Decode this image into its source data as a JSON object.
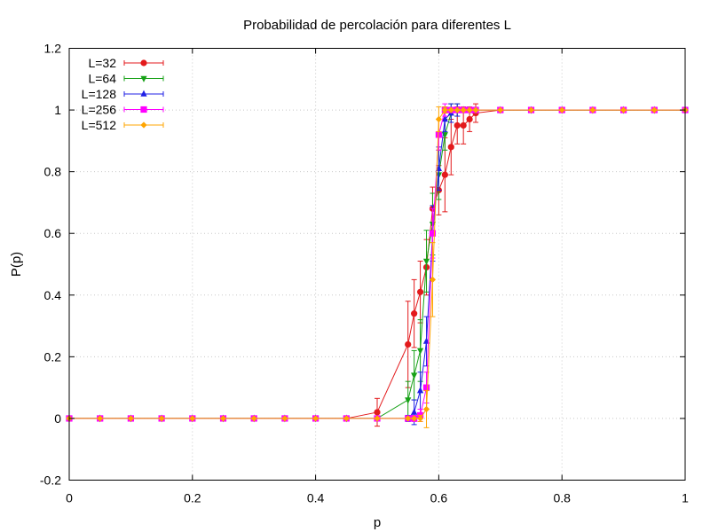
{
  "chart_data": {
    "type": "line",
    "title": "Probabilidad de percolación para diferentes L",
    "xlabel": "p",
    "ylabel": "P(p)",
    "xlim": [
      0,
      1
    ],
    "ylim": [
      -0.2,
      1.2
    ],
    "x_ticks": [
      "0",
      "0.2",
      "0.4",
      "0.6",
      "0.8",
      "1"
    ],
    "y_ticks": [
      "-0.2",
      "0",
      "0.2",
      "0.4",
      "0.6",
      "0.8",
      "1",
      "1.2"
    ],
    "grid": true,
    "legend_position": "top-left",
    "error_bars": true,
    "series": [
      {
        "name": "L=32",
        "color": "#e31a1c",
        "marker": "circle",
        "points": [
          [
            0,
            0,
            0
          ],
          [
            0.05,
            0,
            0
          ],
          [
            0.1,
            0,
            0
          ],
          [
            0.15,
            0,
            0
          ],
          [
            0.2,
            0,
            0
          ],
          [
            0.25,
            0,
            0
          ],
          [
            0.3,
            0,
            0
          ],
          [
            0.35,
            0,
            0
          ],
          [
            0.4,
            0,
            0
          ],
          [
            0.45,
            0,
            0
          ],
          [
            0.5,
            0.02,
            0.045
          ],
          [
            0.55,
            0.24,
            0.14
          ],
          [
            0.56,
            0.34,
            0.11
          ],
          [
            0.57,
            0.41,
            0.1
          ],
          [
            0.58,
            0.49,
            0.09
          ],
          [
            0.59,
            0.68,
            0.07
          ],
          [
            0.6,
            0.74,
            0.08
          ],
          [
            0.61,
            0.79,
            0.12
          ],
          [
            0.62,
            0.88,
            0.09
          ],
          [
            0.63,
            0.95,
            0.06
          ],
          [
            0.64,
            0.95,
            0.06
          ],
          [
            0.65,
            0.97,
            0.04
          ],
          [
            0.66,
            0.99,
            0.03
          ],
          [
            0.7,
            1,
            0
          ],
          [
            0.75,
            1,
            0
          ],
          [
            0.8,
            1,
            0
          ],
          [
            0.85,
            1,
            0
          ],
          [
            0.9,
            1,
            0
          ],
          [
            0.95,
            1,
            0
          ],
          [
            1,
            1,
            0
          ]
        ]
      },
      {
        "name": "L=64",
        "color": "#16a116",
        "marker": "triangle-down",
        "points": [
          [
            0,
            0,
            0
          ],
          [
            0.05,
            0,
            0
          ],
          [
            0.1,
            0,
            0
          ],
          [
            0.15,
            0,
            0
          ],
          [
            0.2,
            0,
            0
          ],
          [
            0.25,
            0,
            0
          ],
          [
            0.3,
            0,
            0
          ],
          [
            0.35,
            0,
            0
          ],
          [
            0.4,
            0,
            0
          ],
          [
            0.45,
            0,
            0
          ],
          [
            0.5,
            0,
            0
          ],
          [
            0.55,
            0.06,
            0.06
          ],
          [
            0.56,
            0.14,
            0.08
          ],
          [
            0.57,
            0.22,
            0.1
          ],
          [
            0.58,
            0.51,
            0.1
          ],
          [
            0.59,
            0.63,
            0.1
          ],
          [
            0.6,
            0.79,
            0.08
          ],
          [
            0.61,
            0.92,
            0.05
          ],
          [
            0.62,
            0.99,
            0.03
          ],
          [
            0.63,
            1,
            0.02
          ],
          [
            0.64,
            1,
            0
          ],
          [
            0.65,
            1,
            0
          ],
          [
            0.66,
            1,
            0
          ],
          [
            0.7,
            1,
            0
          ],
          [
            0.75,
            1,
            0
          ],
          [
            0.8,
            1,
            0
          ],
          [
            0.85,
            1,
            0
          ],
          [
            0.9,
            1,
            0
          ],
          [
            0.95,
            1,
            0
          ],
          [
            1,
            1,
            0
          ]
        ]
      },
      {
        "name": "L=128",
        "color": "#1f1fe6",
        "marker": "triangle-up",
        "points": [
          [
            0,
            0,
            0
          ],
          [
            0.05,
            0,
            0
          ],
          [
            0.1,
            0,
            0
          ],
          [
            0.15,
            0,
            0
          ],
          [
            0.2,
            0,
            0
          ],
          [
            0.25,
            0,
            0
          ],
          [
            0.3,
            0,
            0
          ],
          [
            0.35,
            0,
            0
          ],
          [
            0.4,
            0,
            0
          ],
          [
            0.45,
            0,
            0
          ],
          [
            0.5,
            0,
            0
          ],
          [
            0.55,
            0,
            0.01
          ],
          [
            0.56,
            0.02,
            0.04
          ],
          [
            0.57,
            0.09,
            0.06
          ],
          [
            0.58,
            0.25,
            0.08
          ],
          [
            0.59,
            0.6,
            0.09
          ],
          [
            0.6,
            0.81,
            0.07
          ],
          [
            0.61,
            0.97,
            0.04
          ],
          [
            0.62,
            0.99,
            0.03
          ],
          [
            0.63,
            1,
            0.02
          ],
          [
            0.64,
            1,
            0
          ],
          [
            0.65,
            1,
            0
          ],
          [
            0.66,
            1,
            0
          ],
          [
            0.7,
            1,
            0
          ],
          [
            0.75,
            1,
            0
          ],
          [
            0.8,
            1,
            0
          ],
          [
            0.85,
            1,
            0
          ],
          [
            0.9,
            1,
            0
          ],
          [
            0.95,
            1,
            0
          ],
          [
            1,
            1,
            0
          ]
        ]
      },
      {
        "name": "L=256",
        "color": "#ff00ff",
        "marker": "square",
        "points": [
          [
            0,
            0,
            0
          ],
          [
            0.05,
            0,
            0
          ],
          [
            0.1,
            0,
            0
          ],
          [
            0.15,
            0,
            0
          ],
          [
            0.2,
            0,
            0
          ],
          [
            0.25,
            0,
            0
          ],
          [
            0.3,
            0,
            0
          ],
          [
            0.35,
            0,
            0
          ],
          [
            0.4,
            0,
            0
          ],
          [
            0.45,
            0,
            0
          ],
          [
            0.5,
            0,
            0
          ],
          [
            0.55,
            0,
            0
          ],
          [
            0.56,
            0,
            0.01
          ],
          [
            0.57,
            0.01,
            0.02
          ],
          [
            0.58,
            0.1,
            0.05
          ],
          [
            0.59,
            0.6,
            0.08
          ],
          [
            0.6,
            0.92,
            0.05
          ],
          [
            0.61,
            1,
            0.02
          ],
          [
            0.62,
            1,
            0
          ],
          [
            0.63,
            1,
            0
          ],
          [
            0.64,
            1,
            0
          ],
          [
            0.65,
            1,
            0
          ],
          [
            0.66,
            1,
            0
          ],
          [
            0.7,
            1,
            0
          ],
          [
            0.75,
            1,
            0
          ],
          [
            0.8,
            1,
            0
          ],
          [
            0.85,
            1,
            0
          ],
          [
            0.9,
            1,
            0
          ],
          [
            0.95,
            1,
            0
          ],
          [
            1,
            1,
            0
          ]
        ]
      },
      {
        "name": "L=512",
        "color": "#ffa500",
        "marker": "diamond",
        "points": [
          [
            0,
            0,
            0
          ],
          [
            0.05,
            0,
            0
          ],
          [
            0.1,
            0,
            0
          ],
          [
            0.15,
            0,
            0
          ],
          [
            0.2,
            0,
            0
          ],
          [
            0.25,
            0,
            0
          ],
          [
            0.3,
            0,
            0
          ],
          [
            0.35,
            0,
            0
          ],
          [
            0.4,
            0,
            0
          ],
          [
            0.45,
            0,
            0
          ],
          [
            0.5,
            0,
            0
          ],
          [
            0.55,
            0,
            0
          ],
          [
            0.56,
            0,
            0
          ],
          [
            0.57,
            0,
            0.01
          ],
          [
            0.58,
            0.03,
            0.06
          ],
          [
            0.59,
            0.45,
            0.12
          ],
          [
            0.6,
            0.97,
            0.04
          ],
          [
            0.61,
            1,
            0.01
          ],
          [
            0.62,
            1,
            0
          ],
          [
            0.63,
            1,
            0
          ],
          [
            0.64,
            1,
            0
          ],
          [
            0.65,
            1,
            0
          ],
          [
            0.66,
            1,
            0
          ],
          [
            0.7,
            1,
            0
          ],
          [
            0.75,
            1,
            0
          ],
          [
            0.8,
            1,
            0
          ],
          [
            0.85,
            1,
            0
          ],
          [
            0.9,
            1,
            0
          ],
          [
            0.95,
            1,
            0
          ],
          [
            1,
            1,
            0
          ]
        ]
      }
    ]
  }
}
